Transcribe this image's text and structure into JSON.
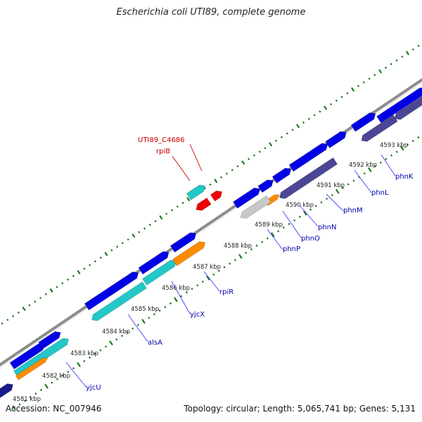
{
  "title": "Escherichia coli UTI89, complete genome",
  "footer": {
    "accession": "Accession: NC_007946",
    "summary": "Topology: circular; Length: 5,065,741 bp; Genes: 5,131"
  },
  "colors": {
    "background": "#ffffff",
    "backbone": "#8c8c8c",
    "gene_forward": "#0000e6",
    "gene_cyan": "#22c7c7",
    "gene_orange": "#ff8c00",
    "gene_slate": "#4b4796",
    "gene_grey": "#c8c8c8",
    "gene_red": "#ee0000",
    "label_blue": "#0000aa",
    "label_red": "#cc0000",
    "tick_green": "#1e7a1e"
  },
  "scale_labels": [
    "4581 kbp",
    "4582 kbp",
    "4583 kbp",
    "4584 kbp",
    "4585 kbp",
    "4586 kbp",
    "4587 kbp",
    "4588 kbp",
    "4589 kbp",
    "4590 kbp",
    "4591 kbp",
    "4592 kbp",
    "4593 kbp"
  ],
  "gene_labels_blue": [
    "yjcU",
    "alsA",
    "yjcX",
    "rpiR",
    "phnP",
    "phnO",
    "phnN",
    "phnM",
    "phnL",
    "phnK"
  ],
  "gene_labels_red": [
    "UTI89_C4686",
    "rpiB"
  ]
}
